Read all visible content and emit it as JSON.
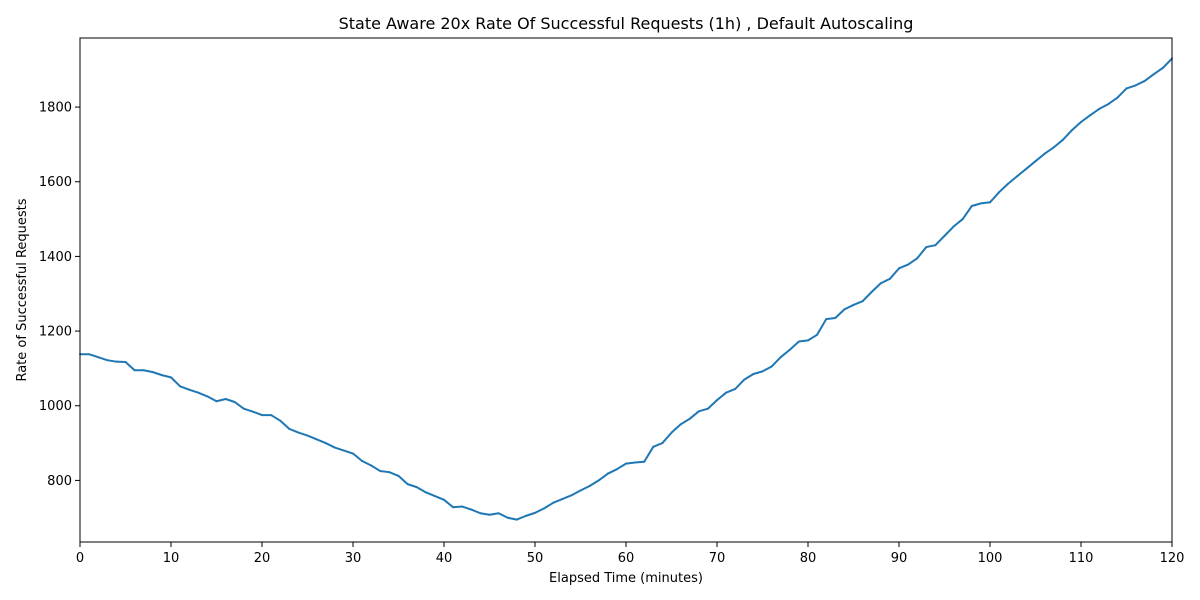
{
  "chart_data": {
    "type": "line",
    "title": "State Aware 20x Rate Of Successful Requests (1h) , Default Autoscaling",
    "xlabel": "Elapsed Time (minutes)",
    "ylabel": "Rate of Successful Requests",
    "xlim": [
      0,
      120
    ],
    "ylim": [
      635,
      1985
    ],
    "x_ticks": [
      0,
      10,
      20,
      30,
      40,
      50,
      60,
      70,
      80,
      90,
      100,
      110,
      120
    ],
    "y_ticks": [
      800,
      1000,
      1200,
      1400,
      1600,
      1800
    ],
    "grid": false,
    "line_color": "#1f77b4",
    "series": [
      {
        "x": [
          0,
          1,
          2,
          3,
          4,
          5,
          6,
          7,
          8,
          9,
          10,
          11,
          12,
          13,
          14,
          15,
          16,
          17,
          18,
          19,
          20,
          21,
          22,
          23,
          24,
          25,
          26,
          27,
          28,
          29,
          30,
          31,
          32,
          33,
          34,
          35,
          36,
          37,
          38,
          39,
          40,
          41,
          42,
          43,
          44,
          45,
          46,
          47,
          48,
          49,
          50,
          51,
          52,
          53,
          54,
          55,
          56,
          57,
          58,
          59,
          60,
          61,
          62,
          63,
          64,
          65,
          66,
          67,
          68,
          69,
          70,
          71,
          72,
          73,
          74,
          75,
          76,
          77,
          78,
          79,
          80,
          81,
          82,
          83,
          84,
          85,
          86,
          87,
          88,
          89,
          90,
          91,
          92,
          93,
          94,
          95,
          96,
          97,
          98,
          99,
          100,
          101,
          102,
          103,
          104,
          105,
          106,
          107,
          108,
          109,
          110,
          111,
          112,
          113,
          114,
          115,
          116,
          117,
          118,
          119,
          120
        ],
        "y": [
          1138,
          1138,
          1130,
          1122,
          1118,
          1117,
          1095,
          1095,
          1090,
          1082,
          1076,
          1052,
          1043,
          1035,
          1025,
          1012,
          1018,
          1010,
          992,
          984,
          975,
          975,
          960,
          938,
          928,
          920,
          910,
          900,
          888,
          880,
          872,
          852,
          840,
          825,
          822,
          812,
          790,
          782,
          768,
          758,
          748,
          728,
          730,
          722,
          712,
          708,
          712,
          700,
          695,
          705,
          713,
          725,
          740,
          750,
          760,
          773,
          785,
          800,
          818,
          830,
          845,
          848,
          850,
          890,
          900,
          928,
          950,
          965,
          985,
          992,
          1015,
          1035,
          1045,
          1070,
          1085,
          1092,
          1105,
          1130,
          1150,
          1172,
          1175,
          1190,
          1232,
          1235,
          1258,
          1270,
          1280,
          1305,
          1328,
          1340,
          1368,
          1378,
          1395,
          1425,
          1430,
          1455,
          1480,
          1500,
          1535,
          1542,
          1545,
          1572,
          1595,
          1615,
          1635,
          1655,
          1675,
          1692,
          1712,
          1738,
          1760,
          1778,
          1795,
          1808,
          1825,
          1850,
          1858,
          1870,
          1888,
          1905,
          1930
        ]
      }
    ]
  }
}
